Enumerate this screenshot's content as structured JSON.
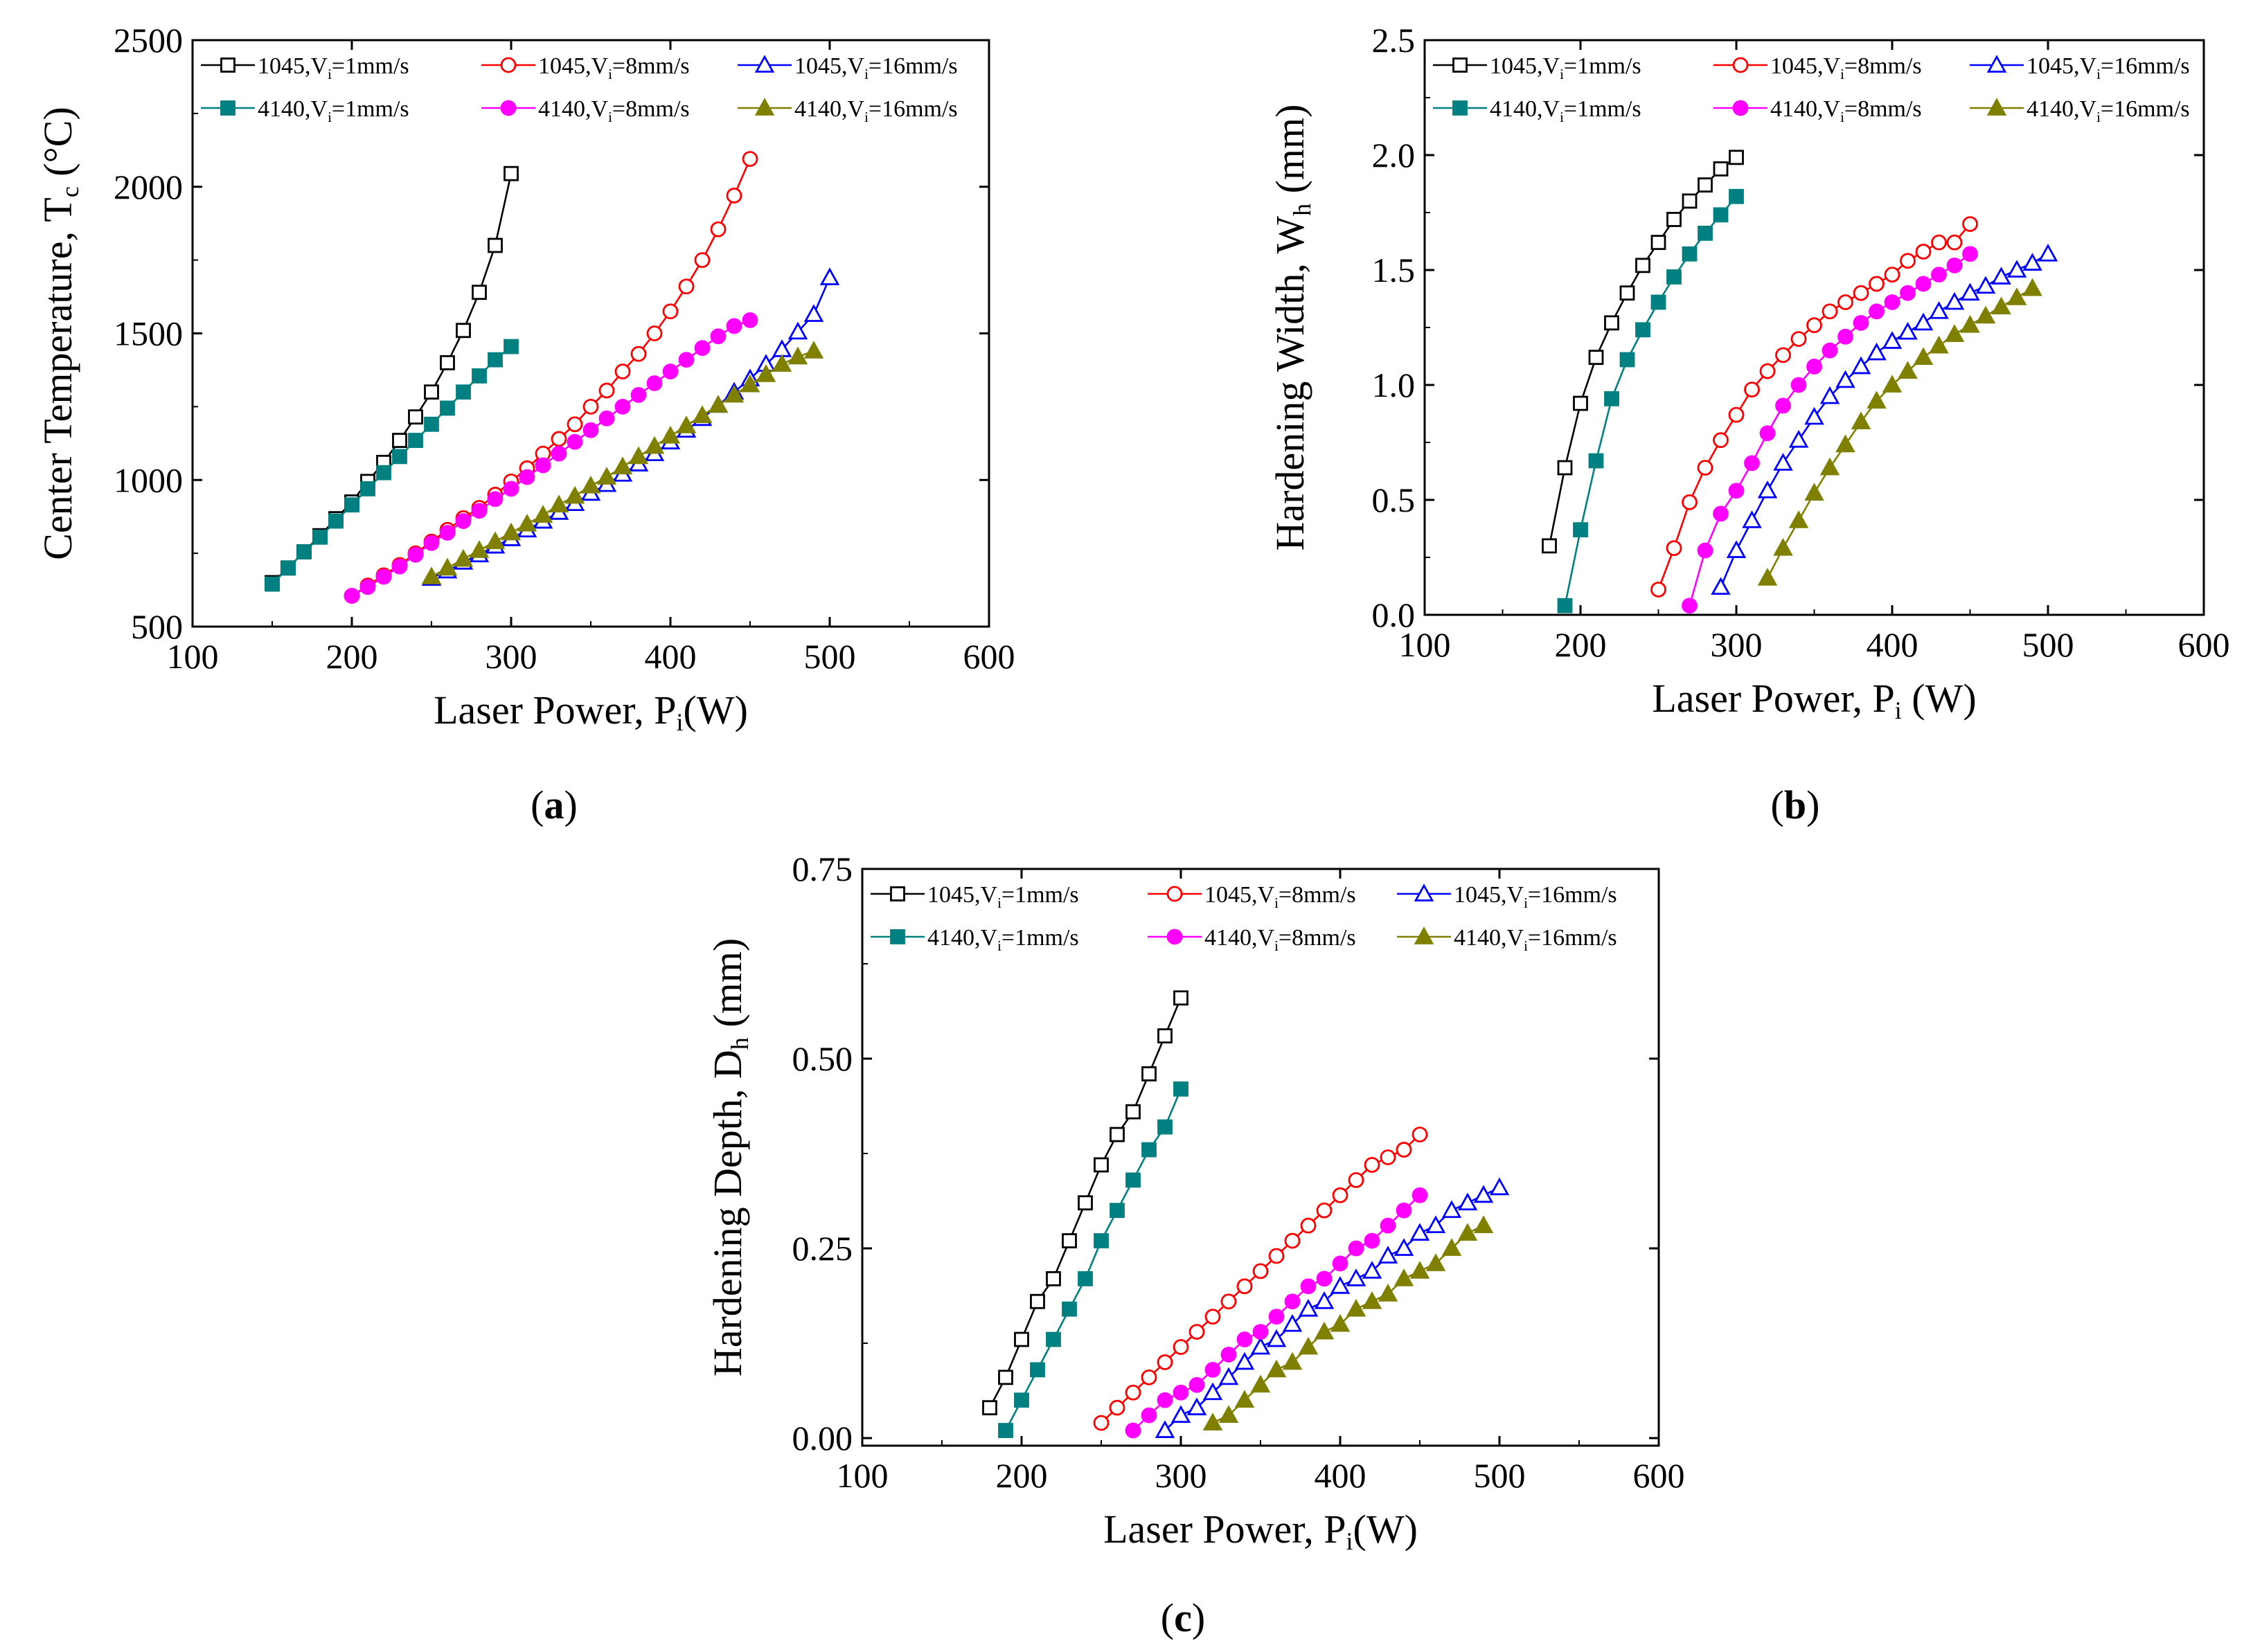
{
  "chart_data": [
    {
      "panel": "a",
      "caption": "(a)",
      "type": "line",
      "ylabel": "Center Temperature, T",
      "ylabel_sub": "c",
      "ylabel_unit": " (°C)",
      "xlabel": "Laser Power, P",
      "xlabel_sub": "i",
      "xlabel_unit": "(W)",
      "xlim": [
        100,
        600
      ],
      "ylim": [
        500,
        2500
      ],
      "xticks": [
        100,
        200,
        300,
        400,
        500,
        600
      ],
      "yticks": [
        500,
        1000,
        1500,
        2000,
        2500
      ],
      "ytick_labels": [
        "500",
        "1000",
        "1500",
        "2000",
        "2500"
      ],
      "series": [
        {
          "name": "1045,Vi=1mm/s",
          "x": [
            150,
            160,
            170,
            180,
            190,
            200,
            210,
            220,
            230,
            240,
            250,
            260,
            270,
            280,
            290,
            300
          ],
          "y": [
            650,
            700,
            755,
            810,
            868,
            925,
            995,
            1060,
            1135,
            1215,
            1300,
            1400,
            1510,
            1640,
            1800,
            2045
          ]
        },
        {
          "name": "1045,Vi=8mm/s",
          "x": [
            200,
            210,
            220,
            230,
            240,
            250,
            260,
            270,
            280,
            290,
            300,
            310,
            320,
            330,
            340,
            350,
            360,
            370,
            380,
            390,
            400,
            410,
            420,
            430,
            440,
            450
          ],
          "y": [
            605,
            640,
            675,
            710,
            750,
            790,
            830,
            870,
            905,
            950,
            995,
            1040,
            1090,
            1140,
            1190,
            1250,
            1305,
            1370,
            1430,
            1500,
            1575,
            1660,
            1750,
            1855,
            1970,
            2095
          ]
        },
        {
          "name": "1045,Vi=16mm/s",
          "x": [
            250,
            260,
            270,
            280,
            290,
            300,
            310,
            320,
            330,
            340,
            350,
            360,
            370,
            380,
            390,
            400,
            410,
            420,
            430,
            440,
            450,
            460,
            470,
            480,
            490,
            500
          ],
          "y": [
            665,
            690,
            720,
            745,
            775,
            800,
            830,
            860,
            890,
            920,
            955,
            985,
            1020,
            1055,
            1090,
            1130,
            1170,
            1210,
            1255,
            1300,
            1345,
            1395,
            1445,
            1505,
            1565,
            1690
          ]
        },
        {
          "name": "4140,Vi=1mm/s",
          "x": [
            150,
            160,
            170,
            180,
            190,
            200,
            210,
            220,
            230,
            240,
            250,
            260,
            270,
            280,
            290,
            300
          ],
          "y": [
            645,
            700,
            755,
            805,
            860,
            915,
            970,
            1025,
            1080,
            1135,
            1190,
            1245,
            1300,
            1355,
            1410,
            1455
          ]
        },
        {
          "name": "4140,Vi=8mm/s",
          "x": [
            200,
            210,
            220,
            230,
            240,
            250,
            260,
            270,
            280,
            290,
            300,
            310,
            320,
            330,
            340,
            350,
            360,
            370,
            380,
            390,
            400,
            410,
            420,
            430,
            440,
            450
          ],
          "y": [
            605,
            635,
            670,
            705,
            745,
            785,
            820,
            860,
            895,
            935,
            970,
            1010,
            1050,
            1090,
            1130,
            1170,
            1210,
            1250,
            1290,
            1330,
            1370,
            1410,
            1450,
            1490,
            1525,
            1545
          ]
        },
        {
          "name": "4140,Vi=16mm/s",
          "x": [
            250,
            260,
            270,
            280,
            290,
            300,
            310,
            320,
            330,
            340,
            350,
            360,
            370,
            380,
            390,
            400,
            410,
            420,
            430,
            440,
            450,
            460,
            470,
            480,
            490
          ],
          "y": [
            670,
            700,
            730,
            760,
            790,
            820,
            850,
            880,
            915,
            945,
            980,
            1010,
            1045,
            1080,
            1115,
            1150,
            1185,
            1220,
            1255,
            1290,
            1325,
            1360,
            1395,
            1420,
            1440
          ]
        }
      ]
    },
    {
      "panel": "b",
      "caption": "(b)",
      "type": "line",
      "ylabel": "Hardening Width, W",
      "ylabel_sub": "h",
      "ylabel_unit": " (mm)",
      "xlabel": "Laser Power, P",
      "xlabel_sub": "i",
      "xlabel_unit": " (W)",
      "xlim": [
        100,
        600
      ],
      "ylim": [
        0,
        2.5
      ],
      "xticks": [
        100,
        200,
        300,
        400,
        500,
        600
      ],
      "yticks": [
        0,
        0.5,
        1.0,
        1.5,
        2.0,
        2.5
      ],
      "ytick_labels": [
        "0.0",
        "0.5",
        "1.0",
        "1.5",
        "2.0",
        "2.5"
      ],
      "series": [
        {
          "name": "1045,Vi=1mm/s",
          "x": [
            180,
            190,
            200,
            210,
            220,
            230,
            240,
            250,
            260,
            270,
            280,
            290,
            300
          ],
          "y": [
            0.3,
            0.64,
            0.92,
            1.12,
            1.27,
            1.4,
            1.52,
            1.62,
            1.72,
            1.8,
            1.87,
            1.94,
            1.99
          ]
        },
        {
          "name": "1045,Vi=8mm/s",
          "x": [
            250,
            260,
            270,
            280,
            290,
            300,
            310,
            320,
            330,
            340,
            350,
            360,
            370,
            380,
            390,
            400,
            410,
            420,
            430,
            440,
            450
          ],
          "y": [
            0.11,
            0.29,
            0.49,
            0.64,
            0.76,
            0.87,
            0.98,
            1.06,
            1.13,
            1.2,
            1.26,
            1.32,
            1.36,
            1.4,
            1.44,
            1.48,
            1.54,
            1.58,
            1.62,
            1.62,
            1.7
          ]
        },
        {
          "name": "1045,Vi=16mm/s",
          "x": [
            290,
            300,
            310,
            320,
            330,
            340,
            350,
            360,
            370,
            380,
            390,
            400,
            410,
            420,
            430,
            440,
            450,
            460,
            470,
            480,
            490,
            500
          ],
          "y": [
            0.12,
            0.28,
            0.41,
            0.54,
            0.66,
            0.76,
            0.86,
            0.95,
            1.02,
            1.08,
            1.14,
            1.19,
            1.23,
            1.27,
            1.32,
            1.36,
            1.4,
            1.43,
            1.47,
            1.5,
            1.53,
            1.57
          ]
        },
        {
          "name": "4140,Vi=1mm/s",
          "x": [
            190,
            200,
            210,
            220,
            230,
            240,
            250,
            260,
            270,
            280,
            290,
            300
          ],
          "y": [
            0.04,
            0.37,
            0.67,
            0.94,
            1.11,
            1.24,
            1.36,
            1.47,
            1.57,
            1.66,
            1.74,
            1.82
          ]
        },
        {
          "name": "4140,Vi=8mm/s",
          "x": [
            270,
            280,
            290,
            300,
            310,
            320,
            330,
            340,
            350,
            360,
            370,
            380,
            390,
            400,
            410,
            420,
            430,
            440,
            450
          ],
          "y": [
            0.04,
            0.28,
            0.44,
            0.54,
            0.66,
            0.79,
            0.91,
            1.0,
            1.08,
            1.15,
            1.21,
            1.27,
            1.32,
            1.36,
            1.4,
            1.44,
            1.48,
            1.52,
            1.57
          ]
        },
        {
          "name": "4140,Vi=16mm/s",
          "x": [
            320,
            330,
            340,
            350,
            360,
            370,
            380,
            390,
            400,
            410,
            420,
            430,
            440,
            450,
            460,
            470,
            480,
            490
          ],
          "y": [
            0.16,
            0.29,
            0.41,
            0.53,
            0.64,
            0.74,
            0.84,
            0.93,
            1.0,
            1.06,
            1.12,
            1.17,
            1.22,
            1.26,
            1.3,
            1.34,
            1.38,
            1.42
          ]
        }
      ]
    },
    {
      "panel": "c",
      "caption": "(c)",
      "type": "line",
      "ylabel": "Hardening Depth, D",
      "ylabel_sub": "h",
      "ylabel_unit": " (mm)",
      "xlabel": "Laser Power, P",
      "xlabel_sub": "i",
      "xlabel_unit": "(W)",
      "xlim": [
        100,
        600
      ],
      "ylim": [
        -0.01,
        0.75
      ],
      "xticks": [
        100,
        200,
        300,
        400,
        500,
        600
      ],
      "yticks": [
        0,
        0.25,
        0.5,
        0.75
      ],
      "ytick_labels": [
        "0.00",
        "0.25",
        "0.50",
        "0.75"
      ],
      "series": [
        {
          "name": "1045,Vi=1mm/s",
          "x": [
            180,
            190,
            200,
            210,
            220,
            230,
            240,
            250,
            260,
            270,
            280,
            290,
            300
          ],
          "y": [
            0.04,
            0.08,
            0.13,
            0.18,
            0.21,
            0.26,
            0.31,
            0.36,
            0.4,
            0.43,
            0.48,
            0.53,
            0.58
          ]
        },
        {
          "name": "1045,Vi=8mm/s",
          "x": [
            250,
            260,
            270,
            280,
            290,
            300,
            310,
            320,
            330,
            340,
            350,
            360,
            370,
            380,
            390,
            400,
            410,
            420,
            430,
            440,
            450
          ],
          "y": [
            0.02,
            0.04,
            0.06,
            0.08,
            0.1,
            0.12,
            0.14,
            0.16,
            0.18,
            0.2,
            0.22,
            0.24,
            0.26,
            0.28,
            0.3,
            0.32,
            0.34,
            0.36,
            0.37,
            0.38,
            0.4
          ]
        },
        {
          "name": "1045,Vi=16mm/s",
          "x": [
            290,
            300,
            310,
            320,
            330,
            340,
            350,
            360,
            370,
            380,
            390,
            400,
            410,
            420,
            430,
            440,
            450,
            460,
            470,
            480,
            490,
            500
          ],
          "y": [
            0.01,
            0.03,
            0.04,
            0.06,
            0.08,
            0.1,
            0.12,
            0.13,
            0.15,
            0.17,
            0.18,
            0.2,
            0.21,
            0.22,
            0.24,
            0.25,
            0.27,
            0.28,
            0.3,
            0.31,
            0.32,
            0.33
          ]
        },
        {
          "name": "4140,Vi=1mm/s",
          "x": [
            190,
            200,
            210,
            220,
            230,
            240,
            250,
            260,
            270,
            280,
            290,
            300
          ],
          "y": [
            0.01,
            0.05,
            0.09,
            0.13,
            0.17,
            0.21,
            0.26,
            0.3,
            0.34,
            0.38,
            0.41,
            0.46
          ]
        },
        {
          "name": "4140,Vi=8mm/s",
          "x": [
            270,
            280,
            290,
            300,
            310,
            320,
            330,
            340,
            350,
            360,
            370,
            380,
            390,
            400,
            410,
            420,
            430,
            440,
            450
          ],
          "y": [
            0.01,
            0.03,
            0.05,
            0.06,
            0.07,
            0.09,
            0.11,
            0.13,
            0.14,
            0.16,
            0.18,
            0.2,
            0.21,
            0.23,
            0.25,
            0.26,
            0.28,
            0.3,
            0.32
          ]
        },
        {
          "name": "4140,Vi=16mm/s",
          "x": [
            320,
            330,
            340,
            350,
            360,
            370,
            380,
            390,
            400,
            410,
            420,
            430,
            440,
            450,
            460,
            470,
            480,
            490
          ],
          "y": [
            0.02,
            0.03,
            0.05,
            0.07,
            0.09,
            0.1,
            0.12,
            0.14,
            0.15,
            0.17,
            0.18,
            0.19,
            0.21,
            0.22,
            0.23,
            0.25,
            0.27,
            0.28
          ]
        }
      ]
    }
  ],
  "legend_entries": [
    {
      "material": "1045",
      "sep": ",V",
      "sub": "i",
      "rest": "=1mm/s",
      "marker": "square-open",
      "color": "#000000"
    },
    {
      "material": "1045",
      "sep": ",V",
      "sub": "i",
      "rest": "=8mm/s",
      "marker": "circle-open",
      "color": "#ff0000"
    },
    {
      "material": "1045",
      "sep": ",V",
      "sub": "i",
      "rest": "=16mm/s",
      "marker": "triangle-open",
      "color": "#0000ff"
    },
    {
      "material": "4140",
      "sep": ",V",
      "sub": "i",
      "rest": "=1mm/s",
      "marker": "square-filled",
      "color": "#008080"
    },
    {
      "material": "4140",
      "sep": ",V",
      "sub": "i",
      "rest": "=8mm/s",
      "marker": "circle-filled",
      "color": "#ff00ff"
    },
    {
      "material": "4140",
      "sep": ",V",
      "sub": "i",
      "rest": "=16mm/s",
      "marker": "triangle-filled",
      "color": "#808000"
    }
  ]
}
